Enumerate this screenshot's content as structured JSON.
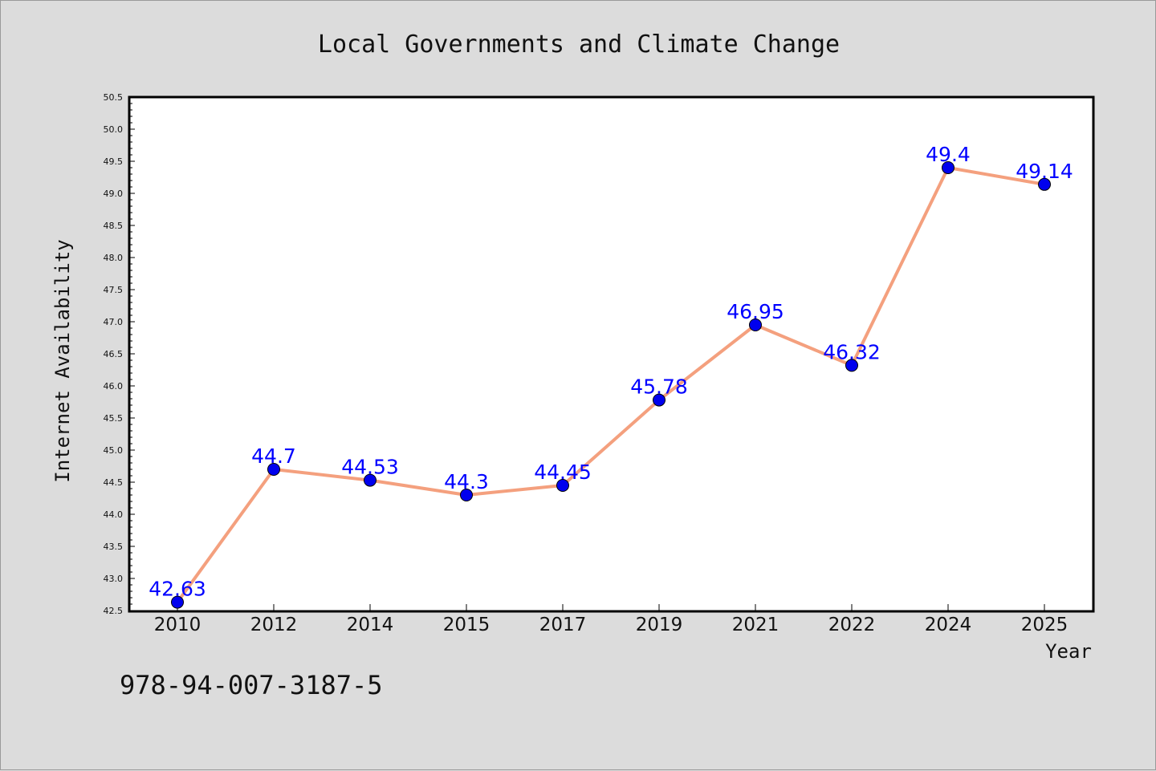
{
  "chart_data": {
    "type": "line",
    "title": "Local Governments and Climate Change",
    "xlabel": "Year",
    "ylabel": "Internet Availability",
    "categories": [
      "2010",
      "2012",
      "2014",
      "2015",
      "2017",
      "2019",
      "2021",
      "2022",
      "2024",
      "2025"
    ],
    "series": [
      {
        "values": [
          42.63,
          44.7,
          44.53,
          44.3,
          44.45,
          45.78,
          46.95,
          46.32,
          49.4,
          49.14
        ],
        "data_labels": [
          "42.63",
          "44.7",
          "44.53",
          "44.3",
          "44.45",
          "45.78",
          "46.95",
          "46.32",
          "49.4",
          "49.14"
        ],
        "line_color": "#f4a07e",
        "marker_color": "#0000ee",
        "label_color": "#0000ff"
      }
    ],
    "ylim": [
      42.5,
      50.5
    ],
    "yticks": [
      "42.5",
      "43.0",
      "43.5",
      "44.0",
      "44.5",
      "45.0",
      "45.5",
      "46.0",
      "46.5",
      "47.0",
      "47.5",
      "48.0",
      "48.5",
      "49.0",
      "49.5",
      "50.0",
      "50.5"
    ],
    "grid": false,
    "legend": "none"
  },
  "footnote": "978-94-007-3187-5"
}
